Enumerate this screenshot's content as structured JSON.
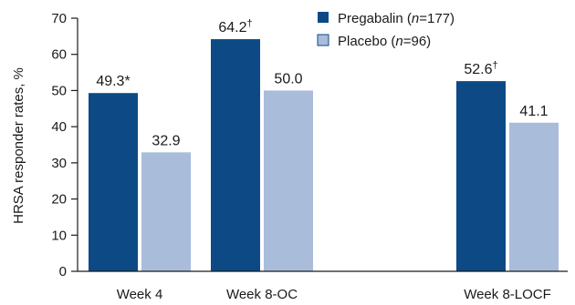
{
  "chart_data": {
    "type": "bar",
    "ylabel": "HRSA responder rates, %",
    "ylim": [
      0,
      70
    ],
    "yticks": [
      0,
      10,
      20,
      30,
      40,
      50,
      60,
      70
    ],
    "categories": [
      "Week 4",
      "Week 8-OC",
      "Week 8-LOCF"
    ],
    "legend_position": "top-center",
    "grid": false,
    "series": [
      {
        "name": "Pregabalin (n=177)",
        "legend_parts": [
          "Pregabalin (",
          "n",
          "=177)"
        ],
        "color": "#0d4a85",
        "values": [
          49.3,
          64.2,
          52.6
        ],
        "labels": [
          "49.3*",
          "64.2†",
          "52.6†"
        ]
      },
      {
        "name": "Placebo (n=96)",
        "legend_parts": [
          "Placebo (",
          "n",
          "=96)"
        ],
        "color": "#a9bcda",
        "values": [
          32.9,
          50.0,
          41.1
        ],
        "labels": [
          "32.9",
          "50.0",
          "41.1"
        ]
      }
    ]
  }
}
